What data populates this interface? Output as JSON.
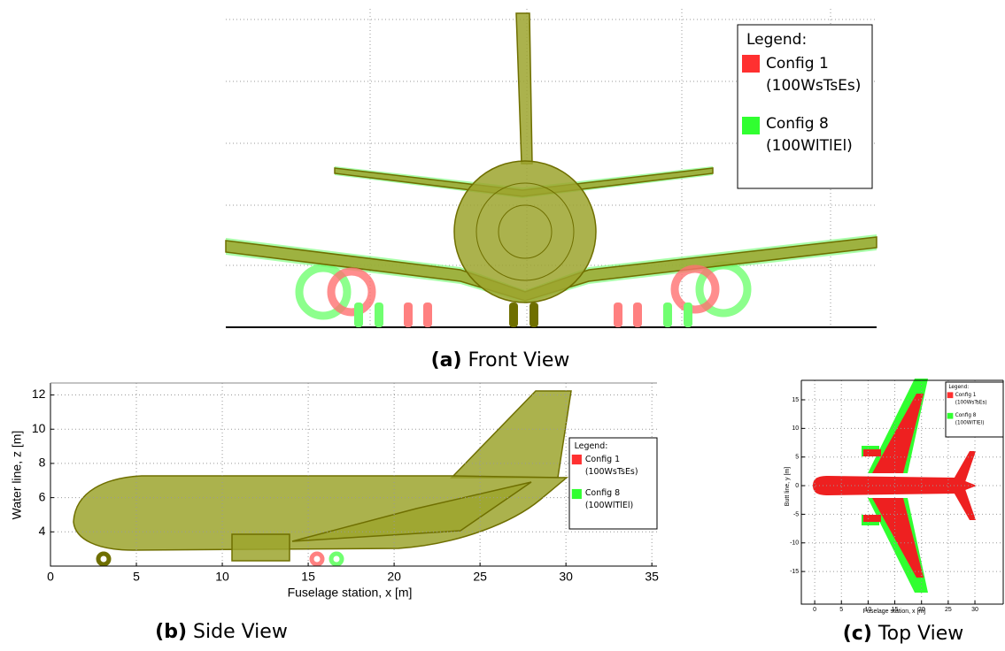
{
  "panels": [
    {
      "caption_label": "(a)",
      "caption": "Front View",
      "legend": {
        "title": "Legend:",
        "items": [
          {
            "name": "Config 1",
            "detail": "(100WsTsEs)",
            "color": "#ff3030"
          },
          {
            "name": "Config 8",
            "detail": "(100WlTlEl)",
            "color": "#30ff30"
          }
        ]
      }
    },
    {
      "caption_label": "(b)",
      "caption": "Side View",
      "xlabel": "Fuselage station, x [m]",
      "ylabel": "Water line, z [m]",
      "xlim": [
        0,
        35.3
      ],
      "ylim": [
        2,
        12.7
      ],
      "xticks": [
        0,
        5,
        10,
        15,
        20,
        25,
        30,
        35
      ],
      "yticks": [
        4,
        6,
        8,
        10,
        12
      ],
      "legend": {
        "title": "Legend:",
        "items": [
          {
            "name": "Config 1",
            "detail": "(100WsTsEs)",
            "color": "#ff3030"
          },
          {
            "name": "Config 8",
            "detail": "(100WlTlEl)",
            "color": "#30ff30"
          }
        ]
      }
    },
    {
      "caption_label": "(c)",
      "caption": "Top View",
      "xlabel": "Fuselage station, x [m]",
      "ylabel": "Butt line, y [m]",
      "xlim": [
        -2.5,
        35.3
      ],
      "ylim": [
        -20.7,
        18.4
      ],
      "xticks": [
        0,
        5,
        10,
        15,
        20,
        25,
        30
      ],
      "yticks": [
        -15,
        -10,
        -5,
        0,
        5,
        10,
        15
      ],
      "legend": {
        "title": "Legend:",
        "items": [
          {
            "name": "Config 1",
            "detail": "(100WsTsEs)",
            "color": "#ff3030"
          },
          {
            "name": "Config 8",
            "detail": "(100WlTlEl)",
            "color": "#30ff30"
          }
        ]
      }
    }
  ]
}
